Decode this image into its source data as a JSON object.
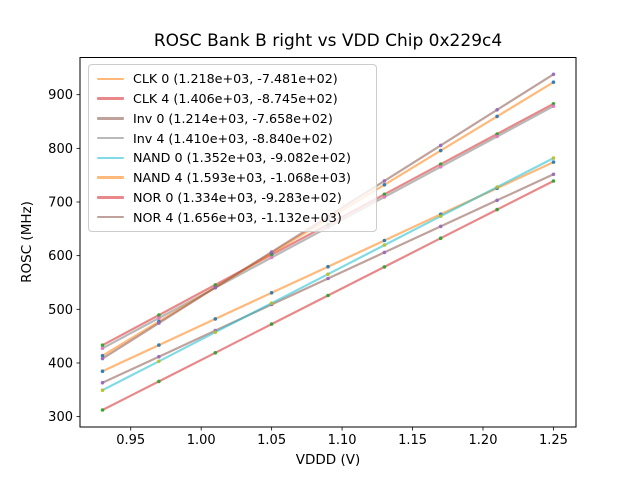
{
  "figure": {
    "title": "ROSC Bank B right vs VDD Chip 0x229c4",
    "xlabel": "VDDD (V)",
    "ylabel": "ROSC (MHz)"
  },
  "chart_data": {
    "type": "scatter",
    "title": "ROSC Bank B right vs VDD Chip 0x229c4",
    "xlabel": "VDDD (V)",
    "ylabel": "ROSC (MHz)",
    "xlim": [
      0.914,
      1.266
    ],
    "ylim": [
      280.7,
      969.3
    ],
    "grid": false,
    "legend_position": "upper left",
    "xticks": {
      "values": [
        0.95,
        1.0,
        1.05,
        1.1,
        1.15,
        1.2,
        1.25
      ],
      "labels": [
        "0.95",
        "1.00",
        "1.05",
        "1.10",
        "1.15",
        "1.20",
        "1.25"
      ]
    },
    "yticks": {
      "values": [
        300,
        400,
        500,
        600,
        700,
        800,
        900
      ],
      "labels": [
        "300",
        "400",
        "500",
        "600",
        "700",
        "800",
        "900"
      ]
    },
    "x": [
      0.93,
      0.97,
      1.01,
      1.05,
      1.09,
      1.13,
      1.17,
      1.21,
      1.25
    ],
    "series": [
      {
        "name": "CLK 0",
        "label": "CLK 0 (1.218e+03, -7.481e+02)",
        "slope": 1218,
        "intercept": -748.1,
        "line_color": "#ff7f0e",
        "marker_color": "#1f77b4",
        "values": [
          384.6,
          433.4,
          482.1,
          530.8,
          579.5,
          628.2,
          677.0,
          725.7,
          774.4
        ]
      },
      {
        "name": "CLK 4",
        "label": "CLK 4 (1.406e+03, -8.745e+02)",
        "slope": 1406,
        "intercept": -874.5,
        "line_color": "#d62728",
        "marker_color": "#2ca02c",
        "values": [
          433.1,
          489.3,
          545.6,
          601.8,
          658.0,
          714.3,
          770.5,
          826.8,
          883.0
        ]
      },
      {
        "name": "Inv 0",
        "label": "Inv 0 (1.214e+03, -7.658e+02)",
        "slope": 1214,
        "intercept": -765.8,
        "line_color": "#8c564b",
        "marker_color": "#9467bd",
        "values": [
          363.2,
          411.8,
          460.3,
          508.9,
          557.5,
          606.0,
          654.6,
          703.1,
          751.7
        ]
      },
      {
        "name": "Inv 4",
        "label": "Inv 4 (1.410e+03, -8.840e+02)",
        "slope": 1410,
        "intercept": -884.0,
        "line_color": "#7f7f7f",
        "marker_color": "#e377c2",
        "values": [
          427.3,
          483.7,
          540.1,
          596.5,
          652.9,
          709.3,
          765.7,
          822.1,
          878.5
        ]
      },
      {
        "name": "NAND 0",
        "label": "NAND 0 (1.352e+03, -9.082e+02)",
        "slope": 1352,
        "intercept": -908.2,
        "line_color": "#17becf",
        "marker_color": "#bcbd22",
        "values": [
          349.2,
          403.2,
          457.3,
          511.4,
          565.5,
          619.6,
          673.6,
          727.7,
          781.8
        ]
      },
      {
        "name": "NAND 4",
        "label": "NAND 4 (1.593e+03, -1.068e+03)",
        "slope": 1593,
        "intercept": -1068,
        "line_color": "#ff7f0e",
        "marker_color": "#1f77b4",
        "values": [
          413.5,
          477.2,
          540.9,
          604.7,
          668.4,
          732.1,
          795.8,
          859.5,
          923.3
        ]
      },
      {
        "name": "NOR 0",
        "label": "NOR 0 (1.334e+03, -9.283e+02)",
        "slope": 1334,
        "intercept": -928.3,
        "line_color": "#d62728",
        "marker_color": "#2ca02c",
        "values": [
          312.3,
          365.7,
          419.0,
          472.4,
          525.8,
          579.1,
          632.5,
          685.8,
          739.2
        ]
      },
      {
        "name": "NOR 4",
        "label": "NOR 4 (1.656e+03, -1.132e+03)",
        "slope": 1656,
        "intercept": -1132,
        "line_color": "#8c564b",
        "marker_color": "#9467bd",
        "values": [
          408.1,
          474.3,
          540.6,
          606.8,
          673.0,
          739.3,
          805.5,
          871.8,
          938.0
        ]
      }
    ],
    "style": {
      "line_alpha": 0.55,
      "line_width": 2.2,
      "marker_radius": 1.8,
      "axis_color": "#000000",
      "legend_border_color": "#cccccc"
    }
  }
}
